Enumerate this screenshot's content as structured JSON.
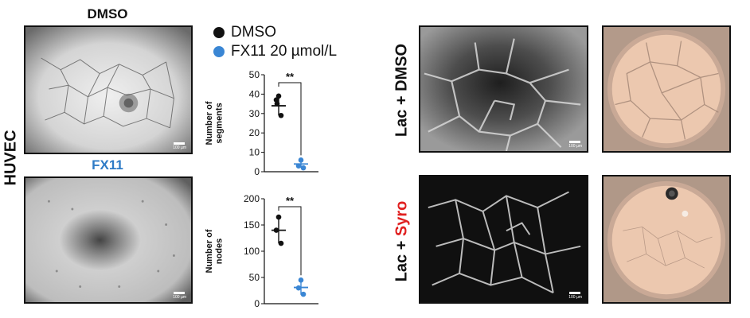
{
  "huvec": {
    "row_label": "HUVEC",
    "top": {
      "title": "DMSO",
      "scale_text": "100 µm"
    },
    "bottom": {
      "title": "FX11",
      "title_color": "#2e7bc6",
      "scale_text": "100 µm"
    }
  },
  "legend": {
    "items": [
      {
        "label": "DMSO",
        "color": "#111111"
      },
      {
        "label": "FX11 20 µmol/L",
        "color": "#3a86d4"
      }
    ]
  },
  "chart_data": [
    {
      "type": "scatter",
      "ylabel": "Number of segments",
      "ylabel_lines": [
        "Number of",
        "segments"
      ],
      "ylim": [
        0,
        50
      ],
      "yticks": [
        "0",
        "10",
        "20",
        "30",
        "40",
        "50"
      ],
      "significance": "**",
      "series": [
        {
          "name": "DMSO",
          "color": "#111111",
          "points": [
            39,
            37,
            29,
            35
          ],
          "mean": 34,
          "sd": 5
        },
        {
          "name": "FX11 20 µmol/L",
          "color": "#3a86d4",
          "points": [
            6,
            3,
            2
          ],
          "mean": 4,
          "sd": 2
        }
      ]
    },
    {
      "type": "scatter",
      "ylabel": "Number of nodes",
      "ylabel_lines": [
        "Number of",
        "nodes"
      ],
      "ylim": [
        0,
        200
      ],
      "yticks": [
        "0",
        "50",
        "100",
        "150",
        "200"
      ],
      "significance": "**",
      "series": [
        {
          "name": "DMSO",
          "color": "#111111",
          "points": [
            165,
            140,
            115
          ],
          "mean": 140,
          "sd": 25
        },
        {
          "name": "FX11 20 µmol/L",
          "color": "#3a86d4",
          "points": [
            45,
            30,
            18
          ],
          "mean": 31,
          "sd": 14
        }
      ]
    }
  ],
  "right": {
    "top_label": "Lac + DMSO",
    "bottom_label_prefix": "Lac + ",
    "bottom_label_highlight": "Syro",
    "highlight_color": "#e02020",
    "scale_text": "100 µm"
  }
}
